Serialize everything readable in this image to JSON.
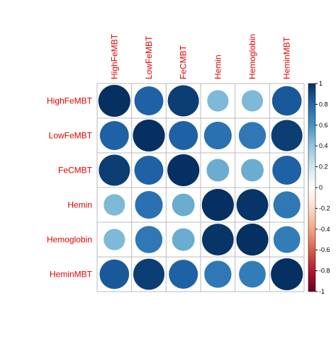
{
  "chart_data": {
    "type": "corrplot",
    "categories": [
      "HighFeMBT",
      "LowFeMBT",
      "FeCMBT",
      "Hemin",
      "Hemoglobin",
      "HeminMBT"
    ],
    "values": [
      [
        1,
        0.82,
        0.95,
        0.45,
        0.45,
        0.85
      ],
      [
        0.82,
        1,
        0.82,
        0.75,
        0.72,
        0.95
      ],
      [
        0.95,
        0.82,
        1,
        0.5,
        0.5,
        0.82
      ],
      [
        0.45,
        0.75,
        0.5,
        1,
        0.98,
        0.72
      ],
      [
        0.45,
        0.72,
        0.5,
        0.98,
        1,
        0.7
      ],
      [
        0.85,
        0.95,
        0.82,
        0.72,
        0.7,
        1
      ]
    ],
    "colors": [
      "#67001F",
      "#B2182B",
      "#D6604D",
      "#F4A582",
      "#FDDBC7",
      "#FFFFFF",
      "#D1E5F0",
      "#92C5DE",
      "#4393C3",
      "#2166AC",
      "#053061"
    ],
    "ylim": [
      -1,
      1
    ],
    "yticks": [
      -1,
      -0.8,
      -0.6,
      -0.4,
      -0.2,
      0,
      0.2,
      0.4,
      0.6,
      0.8,
      1
    ],
    "grid": true
  }
}
